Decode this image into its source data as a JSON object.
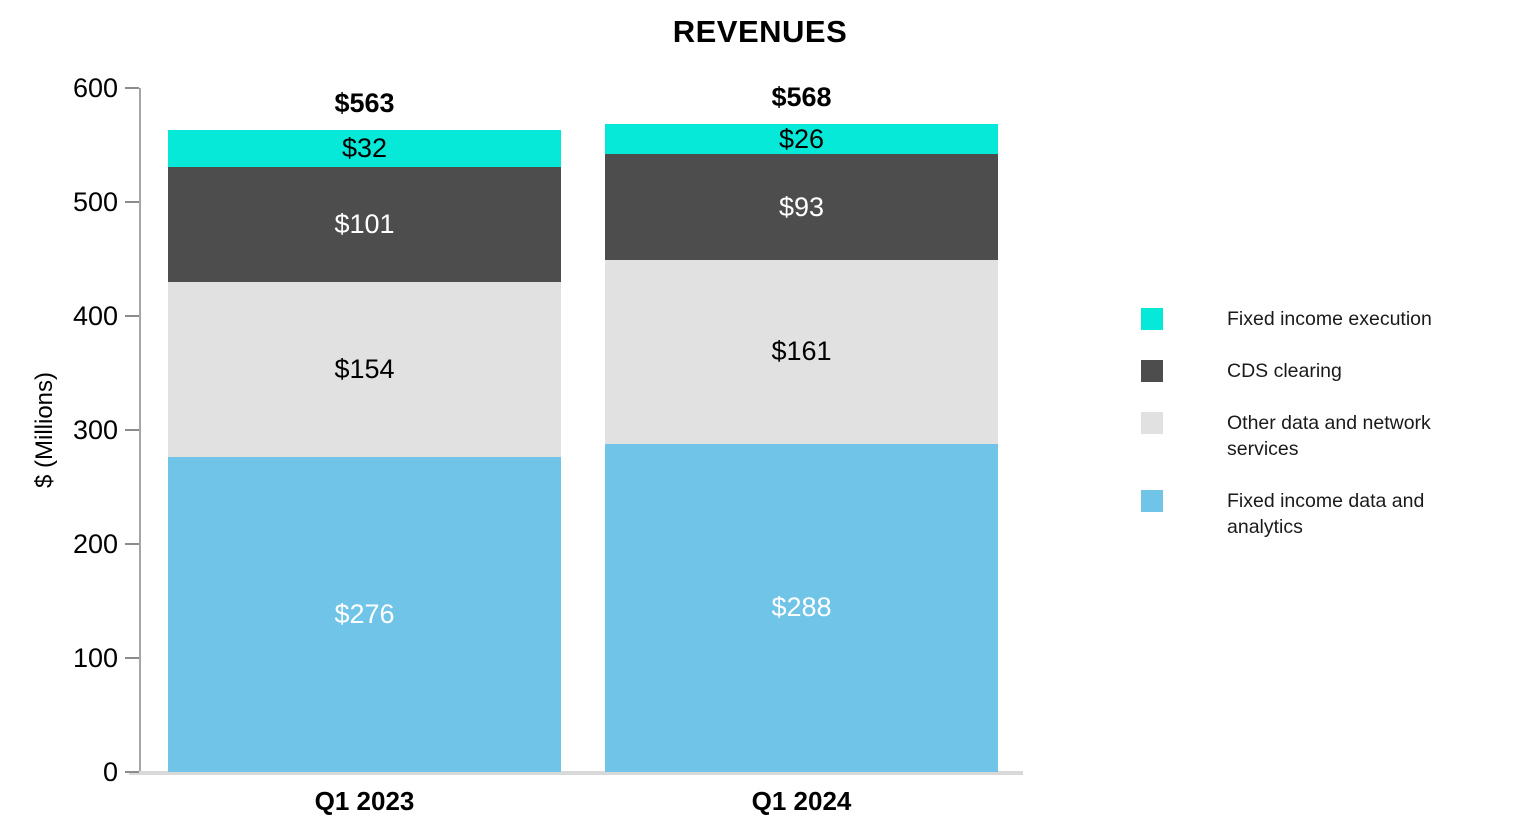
{
  "chart_data": {
    "type": "bar",
    "stacked": true,
    "title": "REVENUES",
    "xlabel": "",
    "ylabel": "$ (Millions)",
    "categories": [
      "Q1 2023",
      "Q1 2024"
    ],
    "totals": [
      "$563",
      "$568"
    ],
    "series": [
      {
        "name": "Fixed income execution",
        "values": [
          32,
          26
        ],
        "labels": [
          "$32",
          "$26"
        ],
        "color": "#06e9d8",
        "label_color": "#000000"
      },
      {
        "name": "CDS clearing",
        "values": [
          101,
          93
        ],
        "labels": [
          "$101",
          "$93"
        ],
        "color": "#4d4d4d",
        "label_color": "#ffffff"
      },
      {
        "name": "Other data and network services",
        "values": [
          154,
          161
        ],
        "labels": [
          "$154",
          "$161"
        ],
        "color": "#e1e1e1",
        "label_color": "#000000"
      },
      {
        "name": "Fixed income data and analytics",
        "values": [
          276,
          288
        ],
        "labels": [
          "$276",
          "$288"
        ],
        "color": "#70c4e8",
        "label_color": "#ffffff"
      }
    ],
    "yticks": [
      0,
      100,
      200,
      300,
      400,
      500,
      600
    ],
    "ylim": [
      0,
      600
    ],
    "grid": false,
    "legend_position": "right"
  }
}
